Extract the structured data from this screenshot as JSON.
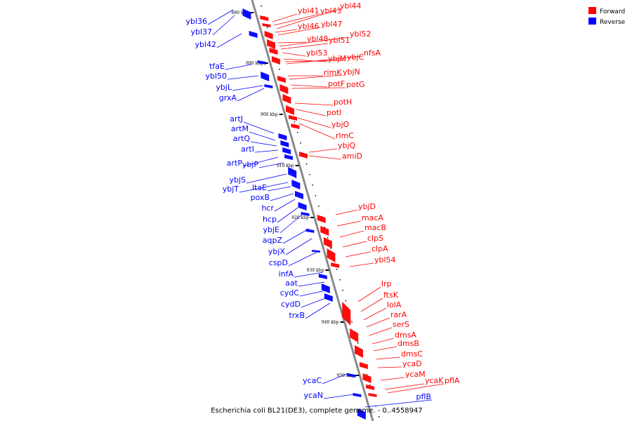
{
  "caption": "Escherichia coli BL21(DE3), complete genome. - 0..4558947",
  "colors": {
    "forward": "#ff0000",
    "reverse": "#0000ff",
    "backbone": "#909090"
  },
  "legend": [
    {
      "label": "Forward",
      "color": "#ff0000"
    },
    {
      "label": "Reverse",
      "color": "#0000ff"
    }
  ],
  "kbp_markers": [
    "880 kbp",
    "890 kbp",
    "900 kbp",
    "910 kbp",
    "920 kbp",
    "930 kbp",
    "940 kbp",
    "950 kbp"
  ],
  "forward_genes": [
    "ybl41",
    "ybl43",
    "ybl44",
    "ybl46",
    "ybl47",
    "ybl48",
    "ybl52",
    "ybl51",
    "ybl53",
    "ybjM",
    "ybjC",
    "nfsA",
    "rimK",
    "ybjN",
    "potF",
    "potG",
    "potH",
    "potI",
    "ybjO",
    "rlmC",
    "ybjQ",
    "amiD",
    "ybjD",
    "macA",
    "macB",
    "clpS",
    "clpA",
    "ybl54",
    "lrp",
    "ftsK",
    "lolA",
    "rarA",
    "serS",
    "dmsA",
    "dmsB",
    "dmsC",
    "ycaD",
    "ycaM",
    "ycaK",
    "pflA"
  ],
  "reverse_genes": [
    "ybl36",
    "ybl37",
    "ybl42",
    "tfaE",
    "ybl50",
    "ybjL",
    "grxA",
    "artJ",
    "artM",
    "artQ",
    "artI",
    "artP",
    "ybjP",
    "ybjS",
    "ybjT",
    "ltaE",
    "poxB",
    "hcr",
    "hcp",
    "ybjE",
    "aqpZ",
    "ybjX",
    "cspD",
    "infA",
    "aat",
    "cydC",
    "cydD",
    "trxB",
    "ycaC",
    "ycaN",
    "pflB"
  ]
}
